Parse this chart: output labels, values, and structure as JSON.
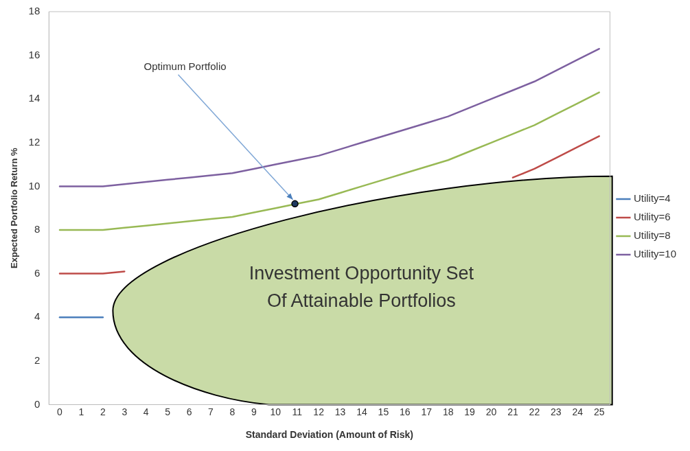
{
  "chart_data": {
    "type": "line",
    "xlabel": "Standard Deviation (Amount of Risk)",
    "ylabel": "Expected Portfolio Return %",
    "x": [
      0,
      1,
      2,
      3,
      4,
      5,
      6,
      7,
      8,
      9,
      10,
      11,
      12,
      13,
      14,
      15,
      16,
      17,
      18,
      19,
      20,
      21,
      22,
      23,
      24,
      25
    ],
    "xlim": [
      -0.5,
      25.5
    ],
    "xticks": [
      0,
      1,
      2,
      3,
      4,
      5,
      6,
      7,
      8,
      9,
      10,
      11,
      12,
      13,
      14,
      15,
      16,
      17,
      18,
      19,
      20,
      21,
      22,
      23,
      24,
      25
    ],
    "series": [
      {
        "name": "Utility=4",
        "color": "#4a7ebb",
        "values": [
          4.0,
          4.0,
          4.0,
          null,
          null,
          null,
          null,
          null,
          null,
          null,
          null,
          null,
          null,
          null,
          null,
          null,
          null,
          null,
          null,
          null,
          null,
          null,
          null,
          null,
          null,
          null
        ]
      },
      {
        "name": "Utility=6",
        "color": "#be4b48",
        "values": [
          6.0,
          6.0,
          6.0,
          6.1,
          null,
          null,
          null,
          null,
          null,
          null,
          null,
          null,
          null,
          null,
          null,
          null,
          null,
          null,
          null,
          null,
          null,
          10.4,
          10.8,
          11.3,
          11.8,
          12.3
        ]
      },
      {
        "name": "Utility=8",
        "color": "#98b954",
        "values": [
          8.0,
          8.0,
          8.0,
          8.1,
          8.2,
          8.3,
          8.4,
          8.5,
          8.6,
          8.8,
          9.0,
          9.2,
          9.4,
          9.7,
          10.0,
          10.3,
          10.6,
          10.9,
          11.2,
          11.6,
          12.0,
          12.4,
          12.8,
          13.3,
          13.8,
          14.3
        ]
      },
      {
        "name": "Utility=10",
        "color": "#7d60a0",
        "values": [
          10.0,
          10.0,
          10.0,
          10.1,
          10.2,
          10.3,
          10.4,
          10.5,
          10.6,
          10.8,
          11.0,
          11.2,
          11.4,
          11.7,
          12.0,
          12.3,
          12.6,
          12.9,
          13.2,
          13.6,
          14.0,
          14.4,
          14.8,
          15.3,
          15.8,
          16.3
        ]
      }
    ],
    "ylim": [
      0,
      18
    ],
    "yticks": [
      0,
      2,
      4,
      6,
      8,
      10,
      12,
      14,
      16,
      18
    ],
    "grid": false,
    "legend": "right",
    "marker": "none",
    "line_style": "solid",
    "annotations": [
      {
        "text": "Optimum Portfolio",
        "x": 10.9,
        "y": 9.2
      },
      "Investment Opportunity Set Of Attainable Portfolios"
    ]
  }
}
